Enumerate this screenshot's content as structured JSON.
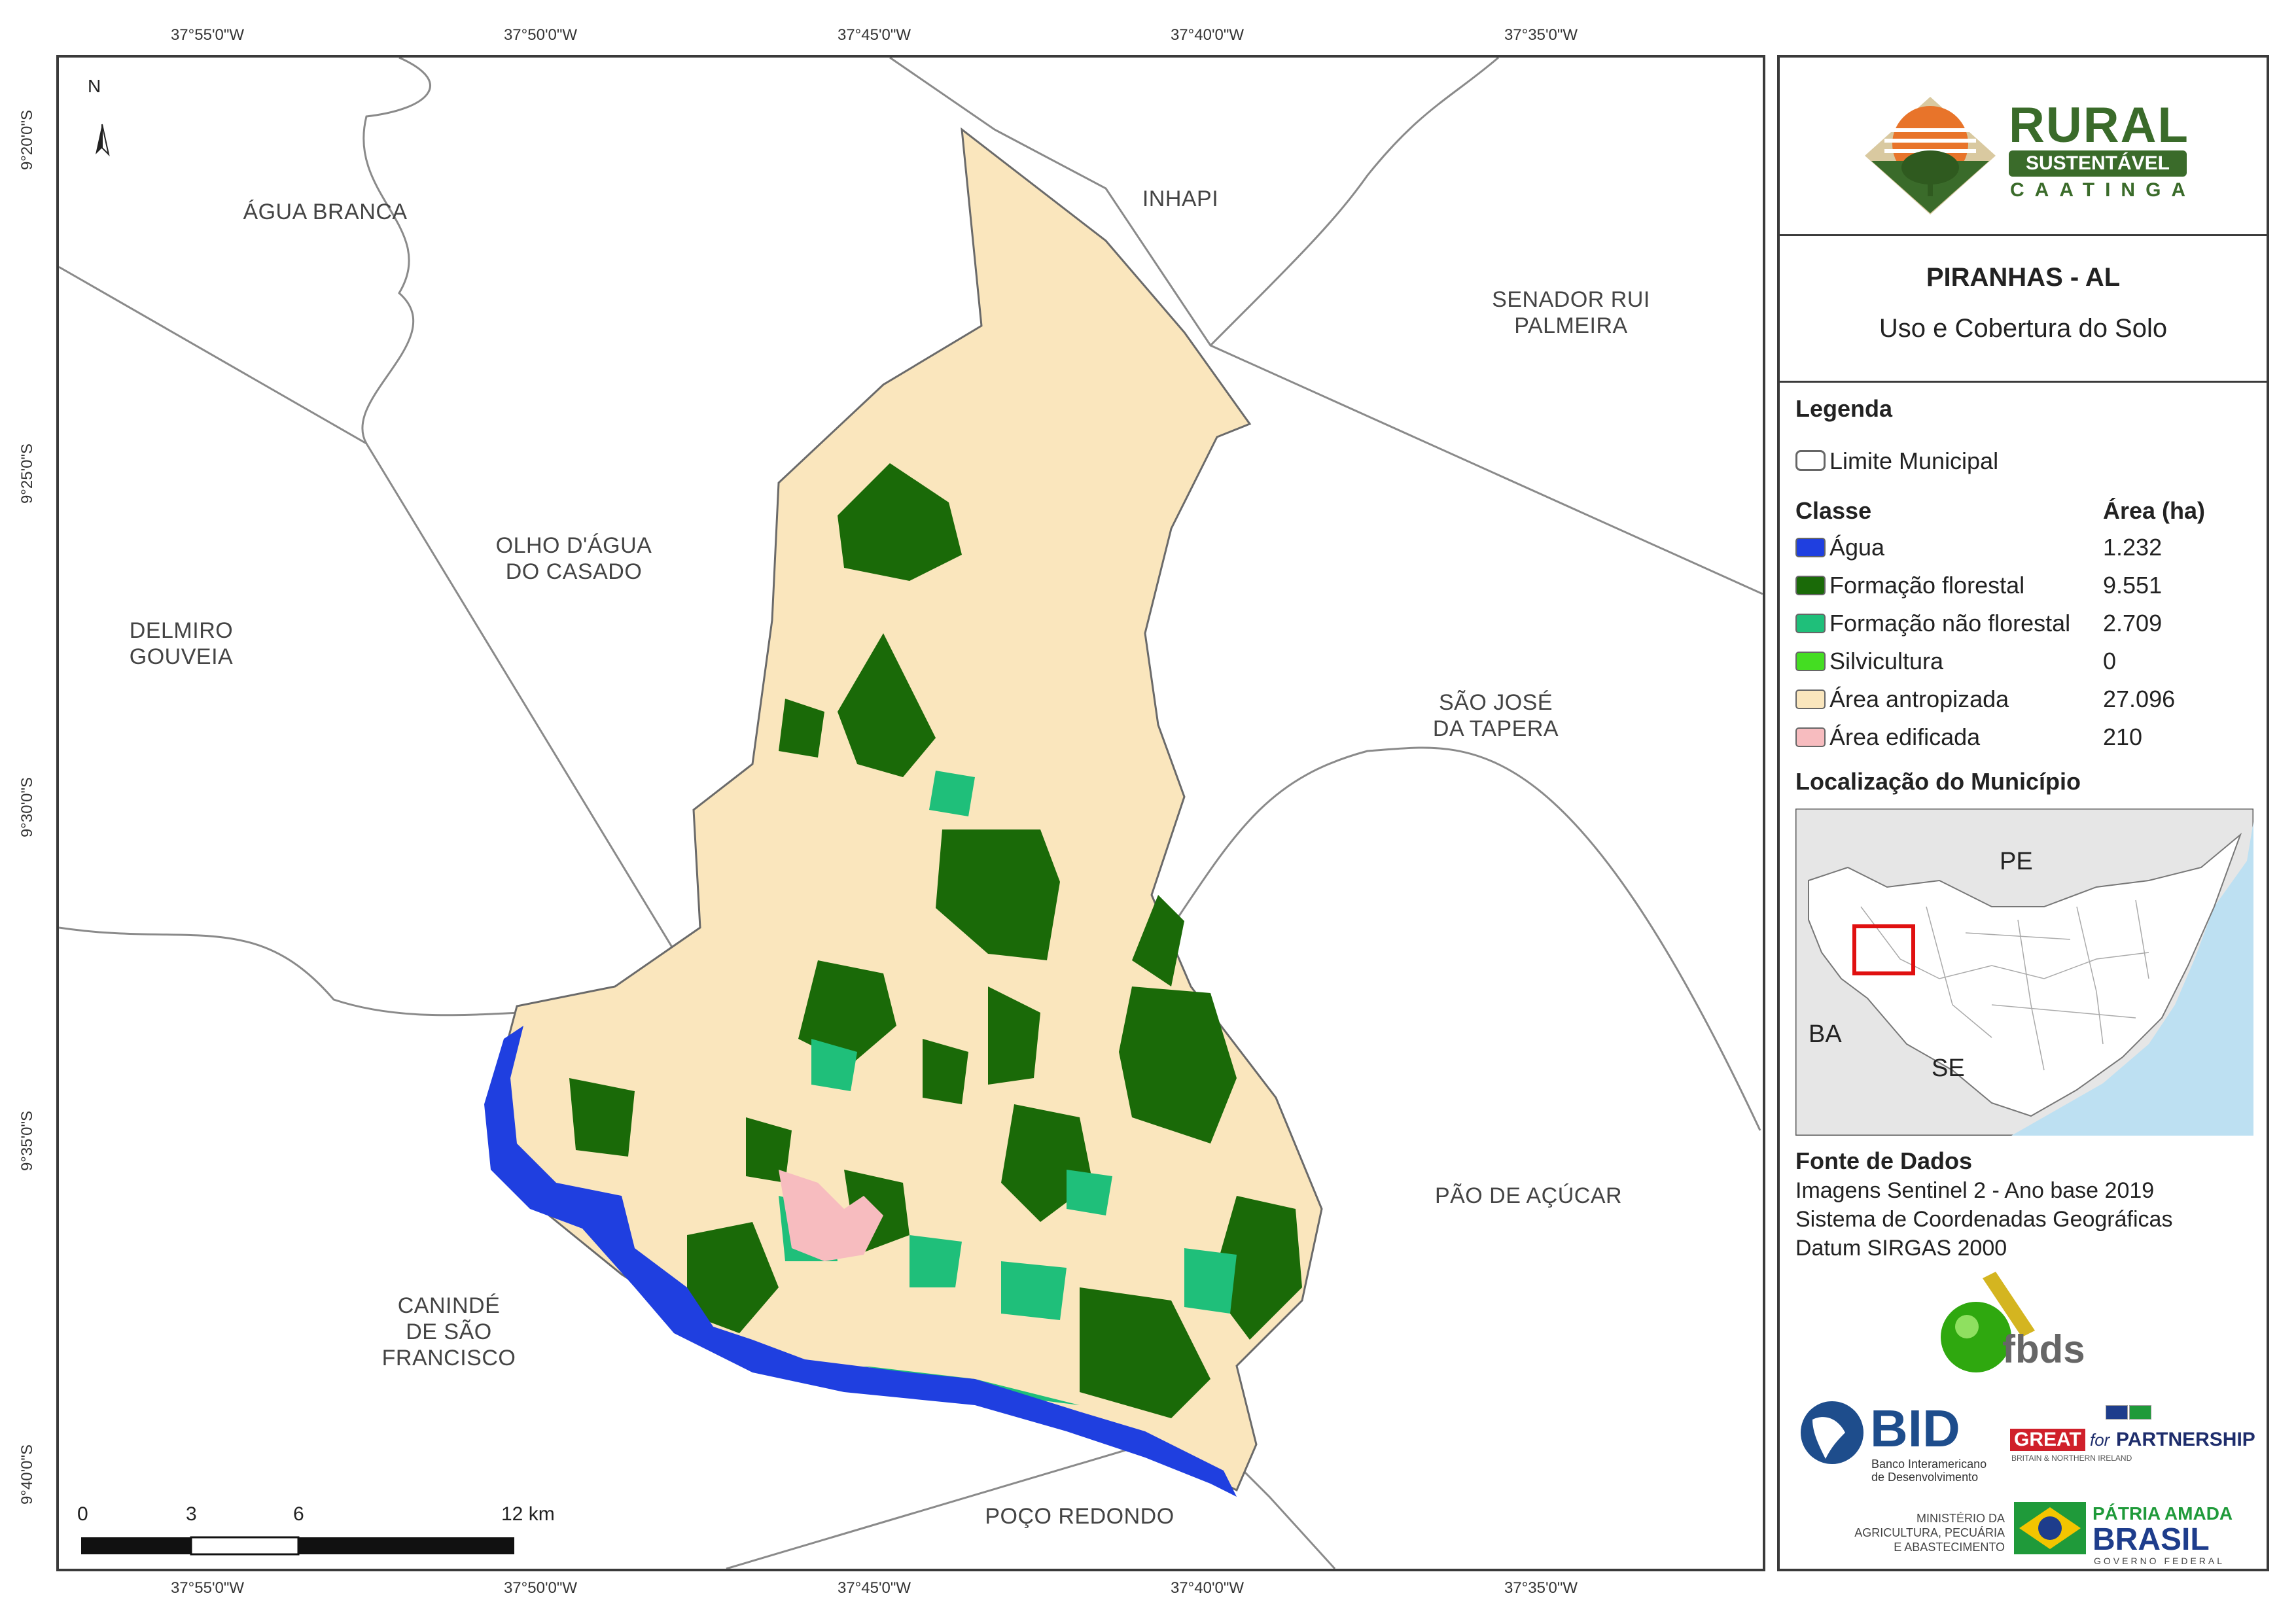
{
  "coords": {
    "top": [
      "37°55'0\"W",
      "37°50'0\"W",
      "37°45'0\"W",
      "37°40'0\"W",
      "37°35'0\"W"
    ],
    "bottom": [
      "37°55'0\"W",
      "37°50'0\"W",
      "37°45'0\"W",
      "37°40'0\"W",
      "37°35'0\"W"
    ],
    "left": [
      "9°20'0\"S",
      "9°25'0\"S",
      "9°30'0\"S",
      "9°35'0\"S",
      "9°40'0\"S"
    ]
  },
  "north_label": "N",
  "municipalities": {
    "agua_branca": "ÁGUA BRANCA",
    "inhapi": "INHAPI",
    "senador_rui_palmeira": [
      "SENADOR RUI",
      "PALMEIRA"
    ],
    "olho_dagua_do_casado": [
      "OLHO D'ÁGUA",
      "DO CASADO"
    ],
    "delmiro_gouveia": [
      "DELMIRO",
      "GOUVEIA"
    ],
    "sao_jose_da_tapera": [
      "SÃO JOSÉ",
      "DA TAPERA"
    ],
    "pao_de_acucar": "PÃO DE AÇÚCAR",
    "caninde_de_sao_francisco": [
      "CANINDÉ",
      "DE SÃO",
      "FRANCISCO"
    ],
    "poco_redondo": "POÇO REDONDO"
  },
  "scale_bar": {
    "labels": [
      "0",
      "3",
      "6",
      "12 km"
    ]
  },
  "logo": {
    "word1": "RURAL",
    "word2": "SUSTENTÁVEL",
    "word3": "CAATINGA"
  },
  "title": {
    "main": "PIRANHAS - AL",
    "sub": "Uso e Cobertura do Solo"
  },
  "legend": {
    "heading": "Legenda",
    "boundary_label": "Limite Municipal",
    "class_header": "Classe",
    "area_header": "Área (ha)",
    "classes": [
      {
        "name": "Água",
        "area": "1.232",
        "color": "#1f3fe0"
      },
      {
        "name": "Formação florestal",
        "area": "9.551",
        "color": "#1a6a08"
      },
      {
        "name": "Formação não florestal",
        "area": "2.709",
        "color": "#1fbf7a"
      },
      {
        "name": "Silvicultura",
        "area": "0",
        "color": "#44dd22"
      },
      {
        "name": "Área antropizada",
        "area": "27.096",
        "color": "#fae6bd"
      },
      {
        "name": "Área edificada",
        "area": "210",
        "color": "#f7bcbf"
      }
    ]
  },
  "location": {
    "heading": "Localização do Município",
    "labels": {
      "pe": "PE",
      "ba": "BA",
      "se": "SE"
    }
  },
  "data_source": {
    "heading": "Fonte de Dados",
    "lines": [
      "Imagens Sentinel 2 - Ano base 2019",
      "Sistema de Coordenadas Geográficas",
      "Datum SIRGAS 2000"
    ]
  },
  "sponsors": {
    "fbds": "fbds",
    "bid": "BID",
    "bid_sub": [
      "Banco Interamericano",
      "de Desenvolvimento"
    ],
    "great": "GREAT",
    "for": "for",
    "partnership": "PARTNERSHIP",
    "great_sub": "BRITAIN & NORTHERN IRELAND",
    "ministerio": [
      "MINISTÉRIO DA",
      "AGRICULTURA, PECUÁRIA",
      "E ABASTECIMENTO"
    ],
    "patria": "PÁTRIA AMADA",
    "brasil": "BRASIL",
    "governo": "GOVERNO FEDERAL"
  },
  "colors": {
    "frame": "#3a3a3a",
    "boundary": "#8a8a8a",
    "water": "#1f3fe0",
    "forest": "#1a6a08",
    "nonforest": "#1fbf7a",
    "anthropic": "#fae6bd",
    "urban": "#f7bcbf",
    "logo_green": "#3a6b2a",
    "ocean": "#bde0f2",
    "inset_land": "#e6e6e6",
    "locator": "#e01010"
  }
}
